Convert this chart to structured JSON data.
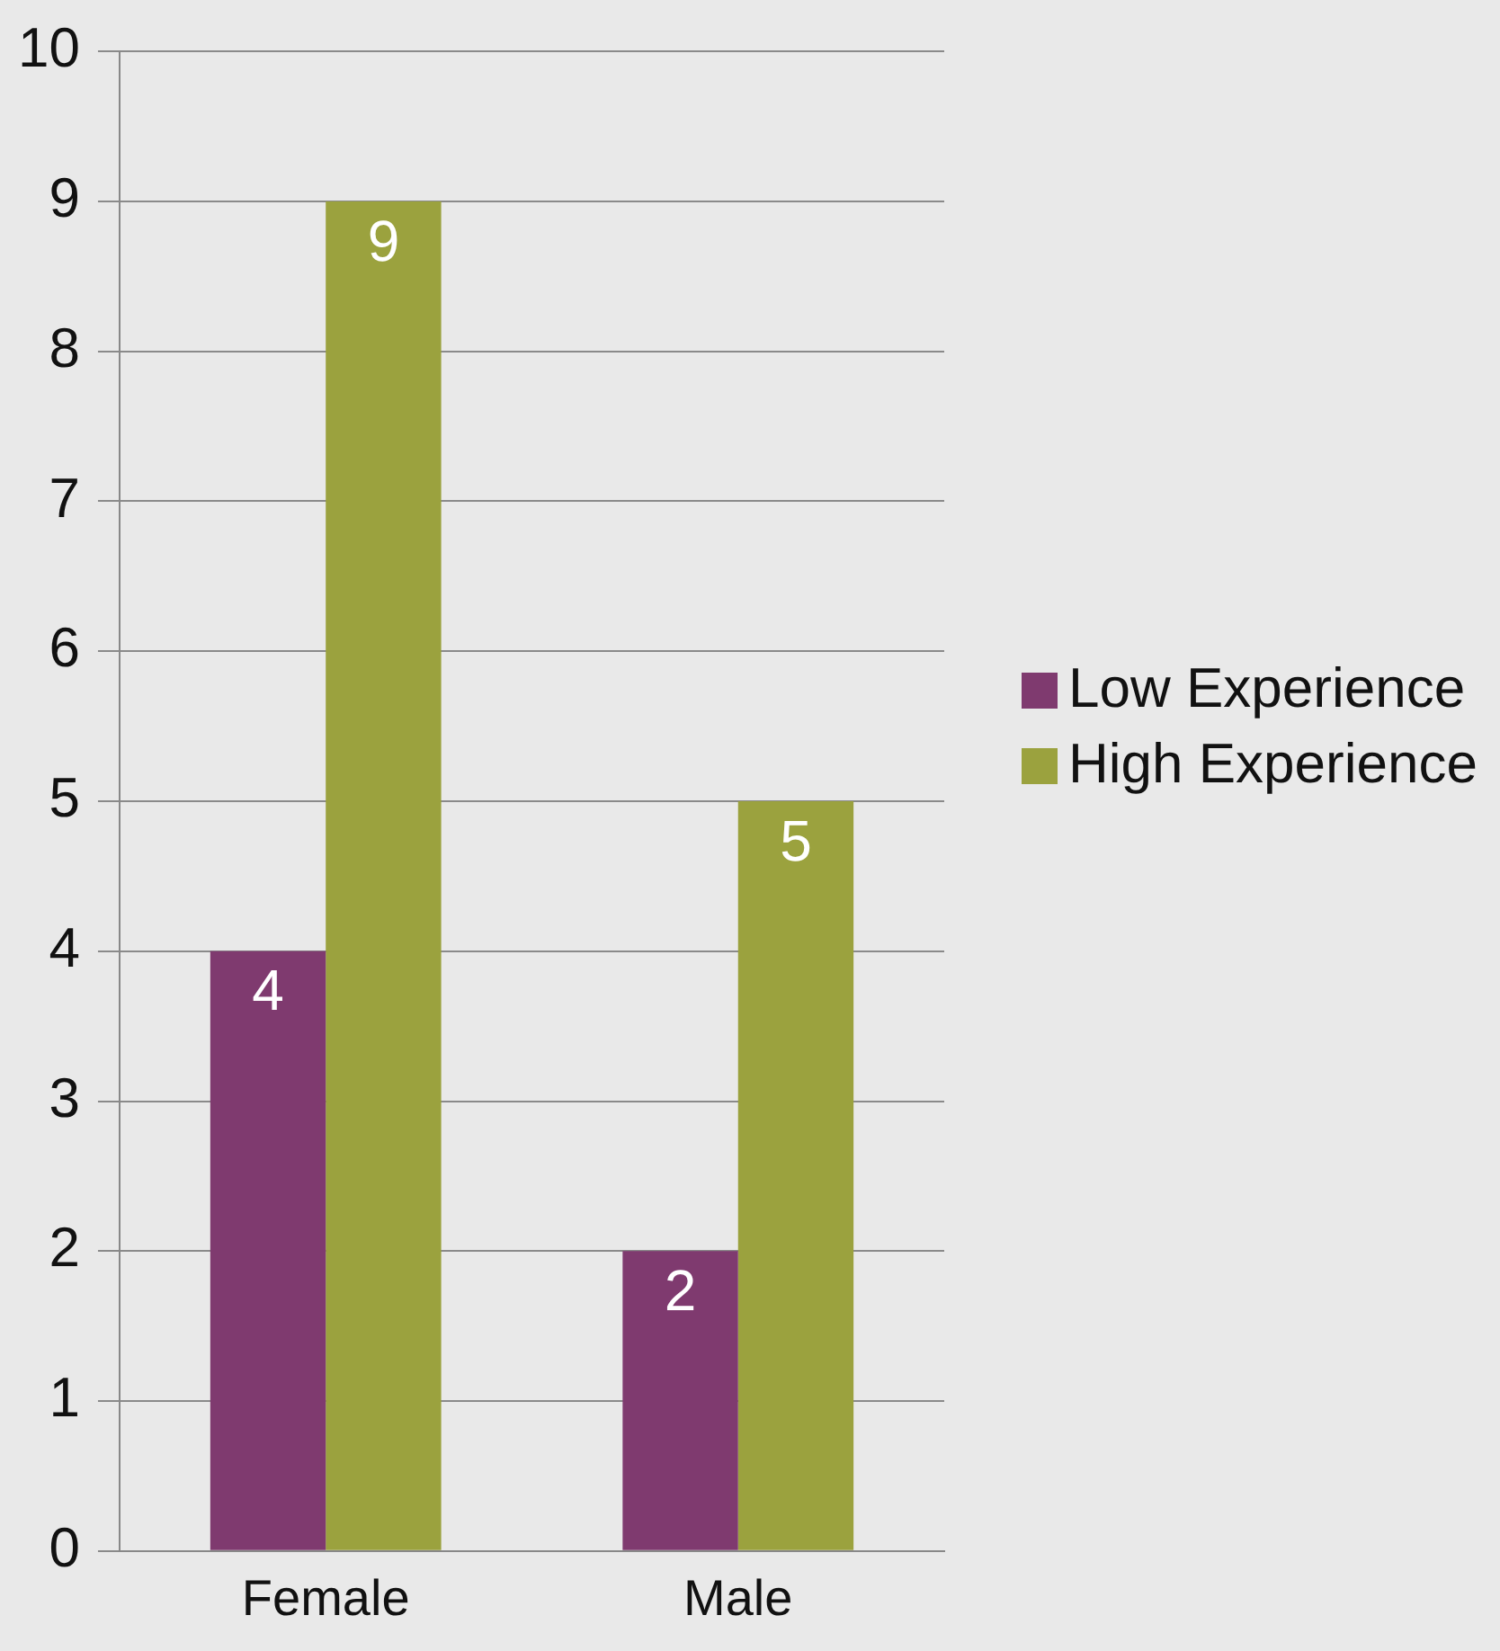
{
  "chart_data": {
    "type": "bar",
    "categories": [
      "Female",
      "Male"
    ],
    "series": [
      {
        "name": "Low Experience",
        "color": "#7f3a6f",
        "values": [
          4,
          2
        ]
      },
      {
        "name": "High Experience",
        "color": "#9ba23e",
        "values": [
          9,
          5
        ]
      }
    ],
    "ylim": [
      0,
      10
    ],
    "yticks": [
      0,
      1,
      2,
      3,
      4,
      5,
      6,
      7,
      8,
      9,
      10
    ],
    "grid": "y",
    "legend": "right",
    "data_labels": true
  }
}
